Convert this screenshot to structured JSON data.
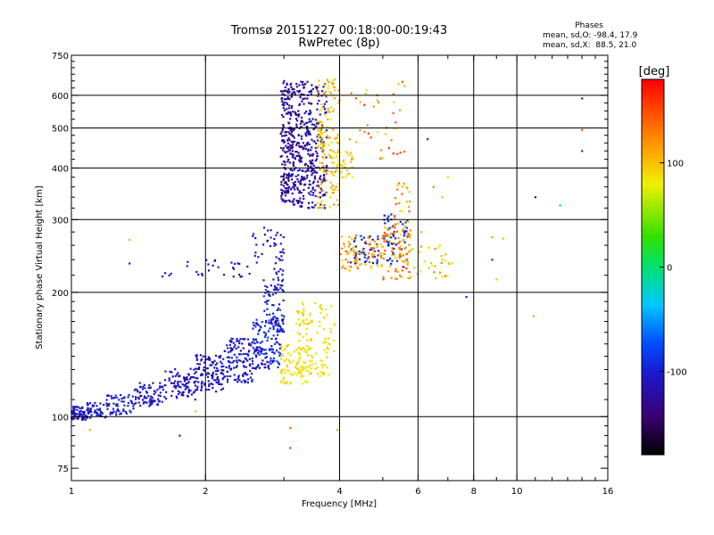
{
  "chart_data": {
    "type": "scatter",
    "title": "Tromsø 20151227 00:18:00-00:19:43",
    "subtitle": "RwPretec (8p)",
    "xlabel": "Frequency [MHz]",
    "ylabel": "Stationary phase Virtual Height [km]",
    "xscale": "log",
    "yscale": "log",
    "xlim": [
      1,
      16
    ],
    "ylim": [
      70,
      750
    ],
    "xticks": [
      1,
      2,
      4,
      6,
      8,
      10,
      16
    ],
    "xtick_labels": [
      "1",
      "2",
      "4",
      "6",
      "8",
      "10",
      "16"
    ],
    "xgrid": [
      2,
      4,
      6,
      8,
      10
    ],
    "yticks": [
      75,
      100,
      200,
      300,
      400,
      500,
      600,
      750
    ],
    "ytick_labels": [
      "75",
      "100",
      "200",
      "300",
      "400",
      "500",
      "600",
      "750"
    ],
    "ygrid": [
      100,
      200,
      300,
      400,
      500,
      600
    ],
    "grid": true,
    "stats": {
      "heading": "Phases",
      "line_o": "mean, sd,O: -98.4, 17.9",
      "line_x": "mean, sd,X:  88.5, 21.0"
    },
    "colorbar": {
      "label": "[deg]",
      "range": [
        -180,
        180
      ],
      "ticks": [
        100,
        0,
        -100
      ],
      "tick_labels": [
        "100",
        "0",
        "-100"
      ],
      "placement": "right",
      "colormap": "rainbow"
    },
    "series": [
      {
        "description": "O-mode phases (dense clusters)",
        "clusters": [
          {
            "f": [
              1.0,
              1.08
            ],
            "h": [
              98,
              106
            ],
            "phase": [
              -120,
              -95
            ],
            "n": 70
          },
          {
            "f": [
              1.08,
              1.2
            ],
            "h": [
              99,
              108
            ],
            "phase": [
              -115,
              -90
            ],
            "n": 50
          },
          {
            "f": [
              1.2,
              1.38
            ],
            "h": [
              101,
              113
            ],
            "phase": [
              -120,
              -85
            ],
            "n": 60
          },
          {
            "f": [
              1.38,
              1.62
            ],
            "h": [
              106,
              121
            ],
            "phase": [
              -125,
              -90
            ],
            "n": 80
          },
          {
            "f": [
              1.62,
              1.9
            ],
            "h": [
              110,
              131
            ],
            "phase": [
              -125,
              -95
            ],
            "n": 90
          },
          {
            "f": [
              1.9,
              2.2
            ],
            "h": [
              115,
              141
            ],
            "phase": [
              -125,
              -95
            ],
            "n": 110
          },
          {
            "f": [
              2.2,
              2.55
            ],
            "h": [
              121,
              155
            ],
            "phase": [
              -125,
              -90
            ],
            "n": 120
          },
          {
            "f": [
              2.55,
              2.95
            ],
            "h": [
              130,
              172
            ],
            "phase": [
              -125,
              -70
            ],
            "n": 130
          },
          {
            "f": [
              2.7,
              3.0
            ],
            "h": [
              160,
              215
            ],
            "phase": [
              -125,
              -80
            ],
            "n": 80
          },
          {
            "f": [
              2.85,
              3.0
            ],
            "h": [
              200,
              280
            ],
            "phase": [
              -120,
              -90
            ],
            "n": 30
          },
          {
            "f": [
              1.6,
              2.55
            ],
            "h": [
              218,
              240
            ],
            "phase": [
              -120,
              -100
            ],
            "n": 30
          },
          {
            "f": [
              2.55,
              2.9
            ],
            "h": [
              235,
              290
            ],
            "phase": [
              -115,
              -90
            ],
            "n": 20
          },
          {
            "f": [
              2.95,
              3.15
            ],
            "h": [
              330,
              650
            ],
            "phase": [
              -150,
              -105
            ],
            "n": 200
          },
          {
            "f": [
              3.15,
              3.5
            ],
            "h": [
              320,
              650
            ],
            "phase": [
              -145,
              -100
            ],
            "n": 250
          },
          {
            "f": [
              3.5,
              3.75
            ],
            "h": [
              320,
              640
            ],
            "phase": [
              -130,
              -95
            ],
            "n": 100
          },
          {
            "f": [
              4.2,
              4.9
            ],
            "h": [
              235,
              275
            ],
            "phase": [
              -115,
              -85
            ],
            "n": 50
          },
          {
            "f": [
              5.0,
              5.7
            ],
            "h": [
              230,
              310
            ],
            "phase": [
              -115,
              -75
            ],
            "n": 55
          }
        ]
      },
      {
        "description": "X-mode phases (dense clusters)",
        "clusters": [
          {
            "f": [
              2.95,
              3.5
            ],
            "h": [
              120,
              150
            ],
            "phase": [
              75,
              100
            ],
            "n": 90
          },
          {
            "f": [
              3.2,
              3.9
            ],
            "h": [
              125,
              190
            ],
            "phase": [
              70,
              100
            ],
            "n": 100
          },
          {
            "f": [
              3.55,
              4.0
            ],
            "h": [
              320,
              660
            ],
            "phase": [
              70,
              130
            ],
            "n": 150
          },
          {
            "f": [
              3.85,
              4.3
            ],
            "h": [
              380,
              440
            ],
            "phase": [
              75,
              105
            ],
            "n": 40
          },
          {
            "f": [
              4.0,
              5.0
            ],
            "h": [
              225,
              275
            ],
            "phase": [
              80,
              140
            ],
            "n": 80
          },
          {
            "f": [
              5.0,
              5.8
            ],
            "h": [
              215,
              290
            ],
            "phase": [
              80,
              160
            ],
            "n": 90
          },
          {
            "f": [
              5.3,
              5.8
            ],
            "h": [
              290,
              380
            ],
            "phase": [
              80,
              150
            ],
            "n": 25
          },
          {
            "f": [
              4.2,
              5.6
            ],
            "h": [
              420,
              650
            ],
            "phase": [
              60,
              160
            ],
            "n": 40
          },
          {
            "f": [
              5.8,
              7.2
            ],
            "h": [
              215,
              260
            ],
            "phase": [
              60,
              130
            ],
            "n": 30
          }
        ]
      },
      {
        "description": "Scattered points",
        "points": [
          {
            "f": 1.35,
            "h": 268,
            "phase": 110
          },
          {
            "f": 1.35,
            "h": 235,
            "phase": -100
          },
          {
            "f": 1.1,
            "h": 93,
            "phase": 110
          },
          {
            "f": 1.75,
            "h": 90,
            "phase": -100
          },
          {
            "f": 1.9,
            "h": 103,
            "phase": 100
          },
          {
            "f": 3.1,
            "h": 94,
            "phase": 140
          },
          {
            "f": 3.1,
            "h": 84,
            "phase": 160
          },
          {
            "f": 3.95,
            "h": 93,
            "phase": 110
          },
          {
            "f": 6.3,
            "h": 470,
            "phase": -90
          },
          {
            "f": 7.0,
            "h": 380,
            "phase": 90
          },
          {
            "f": 8.8,
            "h": 272,
            "phase": 120
          },
          {
            "f": 8.8,
            "h": 240,
            "phase": -90
          },
          {
            "f": 9.3,
            "h": 270,
            "phase": 100
          },
          {
            "f": 9.0,
            "h": 215,
            "phase": 100
          },
          {
            "f": 11.0,
            "h": 340,
            "phase": -110
          },
          {
            "f": 12.5,
            "h": 325,
            "phase": -30
          },
          {
            "f": 14.0,
            "h": 590,
            "phase": -100
          },
          {
            "f": 14.0,
            "h": 495,
            "phase": 150
          },
          {
            "f": 14.0,
            "h": 440,
            "phase": -90
          },
          {
            "f": 10.9,
            "h": 175,
            "phase": 110
          },
          {
            "f": 7.7,
            "h": 195,
            "phase": -100
          },
          {
            "f": 6.8,
            "h": 240,
            "phase": 60
          },
          {
            "f": 6.8,
            "h": 340,
            "phase": 100
          },
          {
            "f": 6.5,
            "h": 360,
            "phase": 130
          },
          {
            "f": 6.1,
            "h": 280,
            "phase": 110
          }
        ]
      }
    ]
  }
}
